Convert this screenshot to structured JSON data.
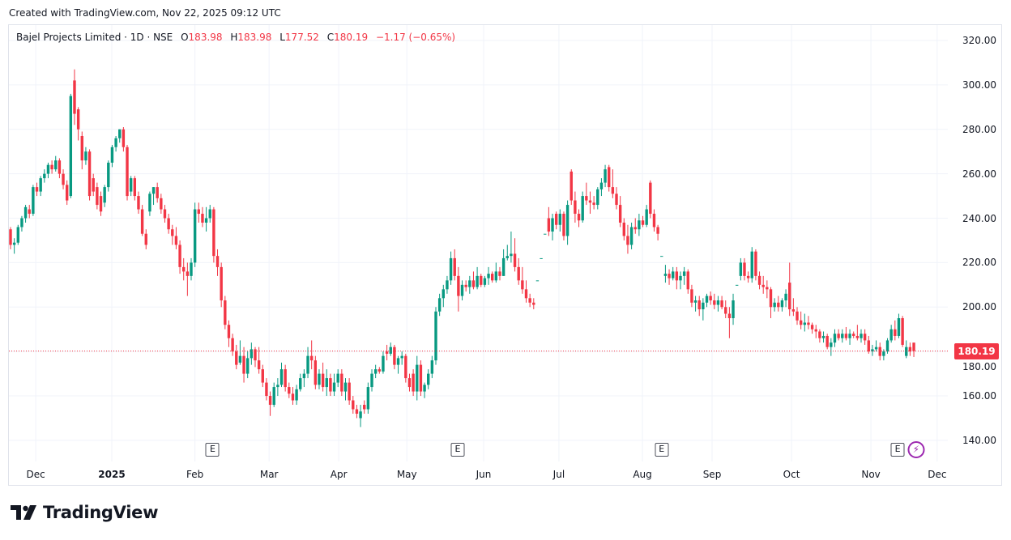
{
  "header": {
    "created": "Created with TradingView.com, Nov 22, 2025 09:12 UTC"
  },
  "legend": {
    "symbol": "Bajel Projects Limited · 1D · NSE",
    "o_label": "O",
    "o": "183.98",
    "h_label": "H",
    "h": "183.98",
    "l_label": "L",
    "l": "177.52",
    "c_label": "C",
    "c": "180.19",
    "change": "−1.17 (−0.65%)"
  },
  "logo": {
    "text": "TradingView"
  },
  "colors": {
    "up": "#089981",
    "down": "#f23645",
    "grid": "#f0f3fa"
  },
  "chart_data": {
    "type": "candlestick",
    "title": "Bajel Projects Limited · 1D · NSE",
    "ylim": [
      130,
      325
    ],
    "y_ticks": [
      "320.00",
      "300.00",
      "280.00",
      "260.00",
      "240.00",
      "220.00",
      "200.00",
      "180.00",
      "160.00",
      "140.00"
    ],
    "grid": true,
    "last_price": 180.19,
    "last_price_label": "180.19",
    "x_ticks": [
      {
        "label": "Dec",
        "index": 6.7,
        "bold": false
      },
      {
        "label": "2025",
        "index": 26.9,
        "bold": true
      },
      {
        "label": "Feb",
        "index": 49,
        "bold": false
      },
      {
        "label": "Mar",
        "index": 68.7,
        "bold": false
      },
      {
        "label": "Apr",
        "index": 87.2,
        "bold": false
      },
      {
        "label": "May",
        "index": 105.3,
        "bold": false
      },
      {
        "label": "Jun",
        "index": 125.7,
        "bold": false
      },
      {
        "label": "Jul",
        "index": 145.7,
        "bold": false
      },
      {
        "label": "Aug",
        "index": 167.9,
        "bold": false
      },
      {
        "label": "Sep",
        "index": 186.4,
        "bold": false
      },
      {
        "label": "Oct",
        "index": 207.5,
        "bold": false
      },
      {
        "label": "Nov",
        "index": 228.6,
        "bold": false
      },
      {
        "label": "Dec",
        "index": 246.2,
        "bold": false
      }
    ],
    "events": [
      {
        "label": "E",
        "index": 53.7
      },
      {
        "label": "E",
        "index": 118.8
      },
      {
        "label": "E",
        "index": 173
      },
      {
        "label": "E",
        "index": 235.7
      }
    ],
    "dividend_marker": {
      "label": "⚡",
      "index": 240.6
    },
    "candles_ohlc": [
      [
        235,
        236,
        226,
        228
      ],
      [
        228,
        231,
        224,
        229
      ],
      [
        229,
        237,
        228,
        236
      ],
      [
        236,
        241,
        234,
        240
      ],
      [
        240,
        246,
        238,
        245
      ],
      [
        244,
        246,
        240,
        242
      ],
      [
        242,
        255,
        241,
        254
      ],
      [
        254,
        256,
        250,
        252
      ],
      [
        252,
        259,
        250,
        258
      ],
      [
        258,
        262,
        256,
        260
      ],
      [
        260,
        265,
        258,
        264
      ],
      [
        264,
        266,
        260,
        262
      ],
      [
        262,
        268,
        261,
        266
      ],
      [
        266,
        267,
        258,
        260
      ],
      [
        260,
        262,
        253,
        255
      ],
      [
        255,
        257,
        246,
        248
      ],
      [
        250,
        296,
        249,
        295
      ],
      [
        302,
        307,
        282,
        287
      ],
      [
        289,
        290,
        275,
        280
      ],
      [
        277,
        279,
        262,
        266
      ],
      [
        266,
        272,
        264,
        270
      ],
      [
        270,
        271,
        248,
        250
      ],
      [
        258,
        260,
        250,
        252
      ],
      [
        254,
        256,
        244,
        246
      ],
      [
        250,
        252,
        241,
        243
      ],
      [
        247,
        255,
        245,
        254
      ],
      [
        254,
        266,
        252,
        265
      ],
      [
        265,
        273,
        263,
        272
      ],
      [
        272,
        277,
        270,
        276
      ],
      [
        276,
        280,
        274,
        280
      ],
      [
        280,
        281,
        270,
        272
      ],
      [
        272,
        273,
        248,
        250
      ],
      [
        252,
        259,
        250,
        258
      ],
      [
        258,
        259,
        248,
        250
      ],
      [
        250,
        252,
        242,
        244
      ],
      [
        244,
        246,
        232,
        233
      ],
      [
        233,
        235,
        226,
        228
      ],
      [
        243,
        252,
        241,
        251
      ],
      [
        251,
        254,
        246,
        254
      ],
      [
        254,
        256,
        247,
        249
      ],
      [
        249,
        251,
        242,
        244
      ],
      [
        244,
        246,
        238,
        240
      ],
      [
        240,
        242,
        233,
        235
      ],
      [
        235,
        237,
        228,
        232
      ],
      [
        232,
        236,
        226,
        228
      ],
      [
        228,
        230,
        215,
        218
      ],
      [
        218,
        222,
        212,
        216
      ],
      [
        216,
        220,
        205,
        214
      ],
      [
        214,
        222,
        212,
        220
      ],
      [
        220,
        247,
        218,
        244
      ],
      [
        244,
        247,
        238,
        242
      ],
      [
        242,
        245,
        236,
        238
      ],
      [
        238,
        245,
        234,
        240
      ],
      [
        240,
        246,
        238,
        244
      ],
      [
        244,
        245,
        220,
        223
      ],
      [
        223,
        226,
        214,
        218
      ],
      [
        218,
        220,
        200,
        203
      ],
      [
        203,
        205,
        190,
        192
      ],
      [
        192,
        194,
        182,
        186
      ],
      [
        186,
        188,
        178,
        180
      ],
      [
        180,
        183,
        172,
        174
      ],
      [
        175,
        185,
        174,
        178
      ],
      [
        178,
        182,
        166,
        170
      ],
      [
        170,
        180,
        168,
        177
      ],
      [
        177,
        184,
        174,
        181
      ],
      [
        181,
        182,
        173,
        176
      ],
      [
        176,
        182,
        170,
        172
      ],
      [
        172,
        174,
        164,
        166
      ],
      [
        166,
        168,
        158,
        160
      ],
      [
        160,
        162,
        151,
        156
      ],
      [
        156,
        166,
        155,
        164
      ],
      [
        164,
        168,
        160,
        165
      ],
      [
        165,
        175,
        164,
        172
      ],
      [
        172,
        174,
        162,
        164
      ],
      [
        164,
        166,
        159,
        161
      ],
      [
        161,
        164,
        156,
        158
      ],
      [
        158,
        165,
        156,
        163
      ],
      [
        163,
        170,
        162,
        168
      ],
      [
        168,
        172,
        164,
        170
      ],
      [
        170,
        182,
        168,
        178
      ],
      [
        178,
        185,
        172,
        176
      ],
      [
        176,
        178,
        163,
        165
      ],
      [
        165,
        172,
        163,
        170
      ],
      [
        170,
        175,
        162,
        164
      ],
      [
        164,
        172,
        160,
        168
      ],
      [
        168,
        170,
        160,
        162
      ],
      [
        162,
        170,
        160,
        166
      ],
      [
        166,
        172,
        164,
        170
      ],
      [
        170,
        172,
        160,
        162
      ],
      [
        162,
        168,
        158,
        166
      ],
      [
        166,
        168,
        156,
        158
      ],
      [
        158,
        160,
        152,
        154
      ],
      [
        154,
        156,
        150,
        152
      ],
      [
        150,
        156,
        146,
        153
      ],
      [
        156,
        158,
        152,
        154
      ],
      [
        154,
        166,
        152,
        164
      ],
      [
        164,
        172,
        162,
        170
      ],
      [
        170,
        174,
        168,
        172
      ],
      [
        172,
        173,
        170,
        171
      ],
      [
        171,
        180,
        170,
        178
      ],
      [
        180,
        183,
        176,
        179
      ],
      [
        179,
        184,
        178,
        182
      ],
      [
        182,
        183,
        172,
        174
      ],
      [
        174,
        178,
        170,
        177
      ],
      [
        177,
        180,
        174,
        178
      ],
      [
        178,
        179,
        166,
        168
      ],
      [
        168,
        170,
        162,
        164
      ],
      [
        170,
        172,
        160,
        162
      ],
      [
        162,
        178,
        158,
        174
      ],
      [
        174,
        176,
        160,
        162
      ],
      [
        162,
        166,
        159,
        165
      ],
      [
        165,
        172,
        163,
        170
      ],
      [
        170,
        178,
        168,
        176
      ],
      [
        176,
        200,
        174,
        198
      ],
      [
        198,
        206,
        196,
        204
      ],
      [
        204,
        210,
        200,
        208
      ],
      [
        208,
        214,
        206,
        212
      ],
      [
        212,
        225,
        210,
        222
      ],
      [
        222,
        226,
        212,
        214
      ],
      [
        214,
        218,
        198,
        205
      ],
      [
        205,
        212,
        203,
        210
      ],
      [
        210,
        212,
        207,
        209
      ],
      [
        209,
        214,
        206,
        212
      ],
      [
        212,
        216,
        208,
        209
      ],
      [
        209,
        218,
        208,
        214
      ],
      [
        214,
        215,
        209,
        210
      ],
      [
        210,
        214,
        209,
        213
      ],
      [
        213,
        218,
        210,
        215
      ],
      [
        215,
        216,
        211,
        212
      ],
      [
        212,
        220,
        211,
        216
      ],
      [
        216,
        218,
        212,
        214
      ],
      [
        214,
        226,
        214,
        222
      ],
      [
        222,
        228,
        221,
        223
      ],
      [
        223,
        234,
        220,
        224
      ],
      [
        224,
        231,
        216,
        218
      ],
      [
        218,
        222,
        210,
        212
      ],
      [
        212,
        218,
        206,
        208
      ],
      [
        208,
        212,
        202,
        204
      ],
      [
        204,
        206,
        200,
        202
      ],
      [
        202,
        204,
        199,
        201
      ],
      [
        212,
        212,
        212,
        212
      ],
      [
        222,
        222,
        222,
        222
      ],
      [
        233,
        233,
        233,
        233
      ],
      [
        240,
        245,
        232,
        234
      ],
      [
        234,
        242,
        230,
        240
      ],
      [
        242,
        243,
        235,
        237
      ],
      [
        237,
        244,
        234,
        242
      ],
      [
        242,
        243,
        230,
        232
      ],
      [
        232,
        248,
        228,
        246
      ],
      [
        261,
        262,
        246,
        248
      ],
      [
        248,
        252,
        238,
        242
      ],
      [
        242,
        244,
        236,
        239
      ],
      [
        239,
        252,
        238,
        250
      ],
      [
        250,
        256,
        246,
        248
      ],
      [
        248,
        252,
        242,
        247
      ],
      [
        247,
        250,
        244,
        246
      ],
      [
        246,
        254,
        244,
        253
      ],
      [
        253,
        258,
        250,
        256
      ],
      [
        256,
        264,
        254,
        262
      ],
      [
        263,
        264,
        252,
        254
      ],
      [
        254,
        262,
        249,
        251
      ],
      [
        251,
        254,
        244,
        246
      ],
      [
        246,
        250,
        236,
        238
      ],
      [
        238,
        240,
        230,
        232
      ],
      [
        232,
        237,
        224,
        228
      ],
      [
        228,
        238,
        226,
        236
      ],
      [
        236,
        240,
        233,
        235
      ],
      [
        235,
        242,
        232,
        239
      ],
      [
        239,
        241,
        236,
        237
      ],
      [
        237,
        246,
        236,
        244
      ],
      [
        256,
        257,
        240,
        242
      ],
      [
        242,
        244,
        234,
        236
      ],
      [
        236,
        237,
        230,
        233
      ],
      [
        223,
        223,
        223,
        223
      ],
      [
        214,
        219,
        211,
        215
      ],
      [
        215,
        217,
        210,
        213
      ],
      [
        213,
        218,
        212,
        216
      ],
      [
        216,
        218,
        208,
        212
      ],
      [
        212,
        216,
        208,
        214
      ],
      [
        214,
        218,
        210,
        216
      ],
      [
        216,
        217,
        206,
        208
      ],
      [
        208,
        210,
        200,
        202
      ],
      [
        202,
        205,
        198,
        203
      ],
      [
        203,
        205,
        196,
        199
      ],
      [
        199,
        204,
        194,
        202
      ],
      [
        202,
        206,
        200,
        205
      ],
      [
        205,
        207,
        201,
        203
      ],
      [
        203,
        206,
        199,
        201
      ],
      [
        201,
        205,
        198,
        203
      ],
      [
        203,
        205,
        199,
        200
      ],
      [
        200,
        203,
        195,
        197
      ],
      [
        197,
        200,
        186,
        195
      ],
      [
        195,
        206,
        192,
        203
      ],
      [
        210,
        210,
        210,
        210
      ],
      [
        214,
        222,
        212,
        220
      ],
      [
        220,
        222,
        212,
        214
      ],
      [
        214,
        216,
        211,
        213
      ],
      [
        213,
        227,
        211,
        225
      ],
      [
        225,
        226,
        212,
        214
      ],
      [
        214,
        216,
        208,
        210
      ],
      [
        210,
        214,
        206,
        209
      ],
      [
        209,
        212,
        204,
        208
      ],
      [
        208,
        209,
        195,
        200
      ],
      [
        200,
        204,
        198,
        202
      ],
      [
        202,
        205,
        198,
        200
      ],
      [
        200,
        204,
        198,
        203
      ],
      [
        203,
        208,
        200,
        206
      ],
      [
        211,
        220,
        196,
        199
      ],
      [
        199,
        204,
        196,
        198
      ],
      [
        198,
        200,
        192,
        194
      ],
      [
        194,
        198,
        190,
        192
      ],
      [
        192,
        197,
        189,
        193
      ],
      [
        193,
        196,
        190,
        192
      ],
      [
        192,
        193,
        188,
        190
      ],
      [
        190,
        192,
        186,
        189
      ],
      [
        189,
        190,
        184,
        186
      ],
      [
        186,
        189,
        184,
        187
      ],
      [
        187,
        188,
        181,
        182
      ],
      [
        182,
        186,
        178,
        184
      ],
      [
        184,
        190,
        182,
        188
      ],
      [
        188,
        190,
        185,
        186
      ],
      [
        186,
        190,
        184,
        188
      ],
      [
        188,
        191,
        185,
        186
      ],
      [
        186,
        190,
        183,
        188
      ],
      [
        188,
        189,
        186,
        187
      ],
      [
        187,
        192,
        185,
        186
      ],
      [
        186,
        190,
        184,
        188
      ],
      [
        188,
        190,
        183,
        185
      ],
      [
        185,
        187,
        179,
        180
      ],
      [
        180,
        183,
        178,
        181
      ],
      [
        181,
        185,
        180,
        182
      ],
      [
        182,
        184,
        176,
        178
      ],
      [
        178,
        181,
        176,
        180
      ],
      [
        180,
        186,
        179,
        185
      ],
      [
        185,
        192,
        184,
        190
      ],
      [
        190,
        194,
        185,
        187
      ],
      [
        187,
        197,
        186,
        195
      ],
      [
        195,
        196,
        182,
        183
      ],
      [
        178,
        185,
        177,
        182
      ],
      [
        182,
        184,
        178,
        180
      ],
      [
        183.98,
        183.98,
        177.52,
        180.19
      ]
    ]
  }
}
